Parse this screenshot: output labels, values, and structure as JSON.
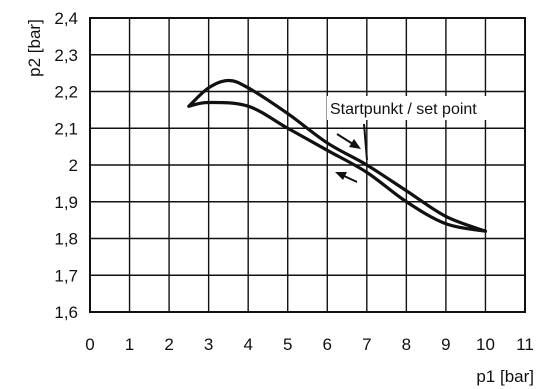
{
  "chart_data": {
    "type": "line",
    "xlabel": "p1 [bar]",
    "ylabel": "p2 [bar]",
    "xlim": [
      0,
      11
    ],
    "ylim": [
      1.6,
      2.4
    ],
    "xticks": [
      0,
      1,
      2,
      3,
      4,
      5,
      6,
      7,
      8,
      9,
      10,
      11
    ],
    "yticks": [
      1.6,
      1.7,
      1.8,
      1.9,
      2.0,
      2.1,
      2.2,
      2.3,
      2.4
    ],
    "ytick_labels": [
      "1,6",
      "1,7",
      "1,8",
      "1,9",
      "2",
      "2,1",
      "2,2",
      "2,3",
      "2,4"
    ],
    "grid": true,
    "series": [
      {
        "values_xy": [
          [
            2.5,
            2.16
          ],
          [
            3.0,
            2.21
          ],
          [
            3.5,
            2.23
          ],
          [
            4.0,
            2.21
          ],
          [
            5.0,
            2.14
          ],
          [
            6.0,
            2.06
          ],
          [
            7.0,
            2.0
          ],
          [
            8.0,
            1.93
          ],
          [
            9.0,
            1.86
          ],
          [
            10.0,
            1.82
          ]
        ]
      },
      {
        "values_xy": [
          [
            10.0,
            1.82
          ],
          [
            9.0,
            1.84
          ],
          [
            8.0,
            1.9
          ],
          [
            7.0,
            1.98
          ],
          [
            6.0,
            2.04
          ],
          [
            5.0,
            2.1
          ],
          [
            4.0,
            2.16
          ],
          [
            3.0,
            2.17
          ],
          [
            2.5,
            2.16
          ]
        ]
      }
    ],
    "annotation": {
      "text": "Startpunkt / set point",
      "x": 7.0,
      "y": 1.99
    }
  }
}
